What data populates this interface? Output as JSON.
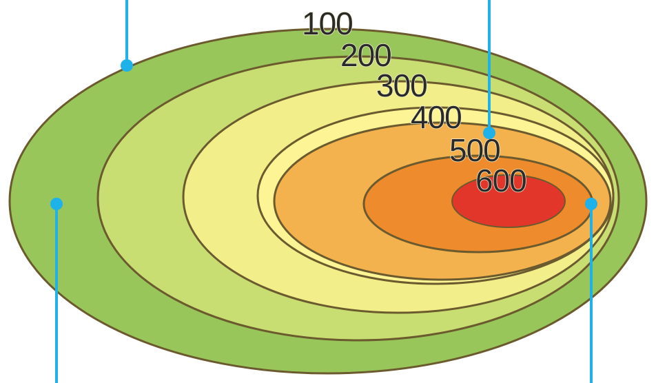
{
  "contour_map": {
    "colors": {
      "band_100": "#98c65a",
      "band_200": "#c9de72",
      "band_300": "#f2ee8a",
      "band_400": "#fdf495",
      "band_500": "#f3b24e",
      "band_600": "#ee8b2c",
      "peak": "#e2362b",
      "contour_line": "#6b5a2e",
      "pointer": "#1fb2ea"
    },
    "levels": [
      {
        "label": "100"
      },
      {
        "label": "200"
      },
      {
        "label": "300"
      },
      {
        "label": "400"
      },
      {
        "label": "500"
      },
      {
        "label": "600"
      }
    ]
  }
}
